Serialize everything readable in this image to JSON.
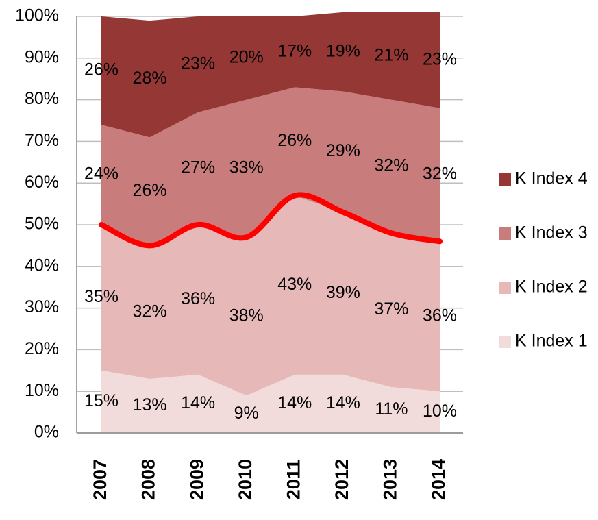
{
  "chart_data": {
    "type": "stacked_area",
    "categories": [
      "2007",
      "2008",
      "2009",
      "2010",
      "2011",
      "2012",
      "2013",
      "2014"
    ],
    "series": [
      {
        "name": "K Index 1",
        "color": "#f2dcdb",
        "values": [
          15,
          13,
          14,
          9,
          14,
          14,
          11,
          10
        ],
        "value_labels": [
          "15%",
          "13%",
          "14%",
          "9%",
          "14%",
          "14%",
          "11%",
          "10%"
        ]
      },
      {
        "name": "K Index 2",
        "color": "#e6b9b8",
        "values": [
          35,
          32,
          36,
          38,
          43,
          39,
          37,
          36
        ],
        "value_labels": [
          "35%",
          "32%",
          "36%",
          "38%",
          "43%",
          "39%",
          "37%",
          "36%"
        ]
      },
      {
        "name": "K Index 3",
        "color": "#c87c7c",
        "values": [
          24,
          26,
          27,
          33,
          26,
          29,
          32,
          32
        ],
        "value_labels": [
          "24%",
          "26%",
          "27%",
          "33%",
          "26%",
          "29%",
          "32%",
          "32%"
        ]
      },
      {
        "name": "K Index 4",
        "color": "#953735",
        "values": [
          26,
          28,
          23,
          20,
          17,
          19,
          21,
          23
        ],
        "value_labels": [
          "26%",
          "28%",
          "23%",
          "20%",
          "17%",
          "19%",
          "21%",
          "23%"
        ]
      }
    ],
    "line_color": "#ff0000",
    "ylim": [
      0,
      100
    ],
    "yticks": [
      {
        "value": 0,
        "label": "0%"
      },
      {
        "value": 10,
        "label": "10%"
      },
      {
        "value": 20,
        "label": "20%"
      },
      {
        "value": 30,
        "label": "30%"
      },
      {
        "value": 40,
        "label": "40%"
      },
      {
        "value": 50,
        "label": "50%"
      },
      {
        "value": 60,
        "label": "60%"
      },
      {
        "value": 70,
        "label": "70%"
      },
      {
        "value": 80,
        "label": "80%"
      },
      {
        "value": 90,
        "label": "90%"
      },
      {
        "value": 100,
        "label": "100%"
      }
    ],
    "grid": true,
    "legend": "right"
  }
}
